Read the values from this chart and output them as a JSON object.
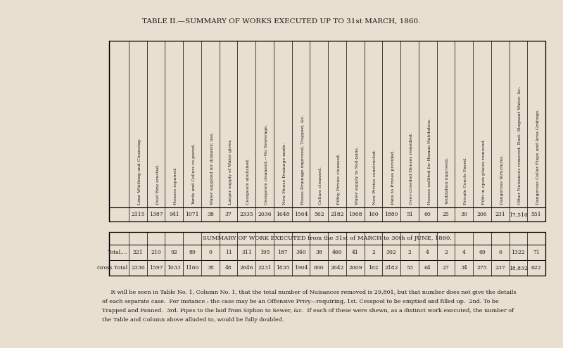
{
  "title": "TABLE II.—SUMMARY OF WORKS EXECUTED UP TO 31st MARCH, 1860.",
  "bg_color": "#e8dfd0",
  "text_color": "#1a1a1a",
  "columns": [
    "Lime Whithing and Cleansing.",
    "Dust Bins erected.",
    "Houses repaired.",
    "Yards and Cellars re-paved.",
    "Water supplied for domestic use.",
    "Larger supply of Water given.",
    "Cesspools abolished.",
    "Cesspools cleansed.—No Sewerage.",
    "New House Drainage made.",
    "House Drainage improved, Trapped, &c.",
    "Cellars cleansed.",
    "Filthy Privies cleansed.",
    "Water supply to Soil-pans.",
    "New Privies constructed.",
    "Pans to Privies provided.",
    "Over-crowded Houses remedied.",
    "Houses unfitted for Human Habitation.",
    "Ventilation improved.",
    "Private Courts Paved.",
    "Filth in open places removed.",
    "Dangerous Structures.",
    "Other Nuisances removed, Dust, Stagnant Water, &c.",
    "Dangerous Cellar Flaps and Area Gratings."
  ],
  "row1_values": [
    "2115",
    "1387",
    "941",
    "1071",
    "38",
    "37",
    "2335",
    "2036",
    "1648",
    "1564",
    "562",
    "2182",
    "1968",
    "160",
    "1880",
    "51",
    "60",
    "25",
    "30",
    "206",
    "231",
    "17,510",
    "551"
  ],
  "total_values": [
    "221",
    "210",
    "92",
    "89",
    "0",
    "11",
    "311",
    "195",
    "187",
    "340",
    "38",
    "460",
    "41",
    "2",
    "302",
    "2",
    "4",
    "2",
    "4",
    "69",
    "6",
    "1322",
    "71"
  ],
  "gross_values": [
    "2336",
    "1597",
    "1033",
    "1160",
    "38",
    "48",
    "2646",
    "2231",
    "1835",
    "1904",
    "600",
    "2642",
    "2009",
    "162",
    "2182",
    "53",
    "64",
    "27",
    "34",
    "275",
    "237",
    "18,832",
    "622"
  ],
  "summary_title": "SUMMARY OF WORK EXECUTED from the 31st of MARCH to 30th of JUNE, 1860.",
  "total_label": "Total....",
  "gross_label": "Gross Total",
  "footnote_lines": [
    "     It will be seen in Table No. 1, Column No. 1, that the total number of Nuisances removed is 29,801, but that number does not give the details",
    "of each separate case.  For instance : the case may be an Offensive Privy—requiring, 1st. Cesspool to be emptied and filled up.  2nd. To be",
    "Trapped and Panned.  3rd. Pipes to the laid from Siphon to Sewer, &c.  If each of these were shewn, as a distinct work executed, the number of",
    "the Table and Column above alluded to, would be fully doubled."
  ]
}
